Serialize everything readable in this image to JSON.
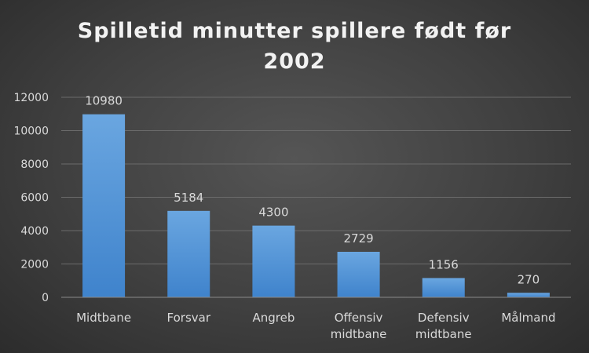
{
  "chart_data": {
    "type": "bar",
    "title_lines": [
      "Spilletid minutter spillere født før",
      "2002"
    ],
    "categories": [
      [
        "Midtbane"
      ],
      [
        "Forsvar"
      ],
      [
        "Angreb"
      ],
      [
        "Offensiv",
        "midtbane"
      ],
      [
        "Defensiv",
        "midtbane"
      ],
      [
        "Målmand"
      ]
    ],
    "values": [
      10980,
      5184,
      4300,
      2729,
      1156,
      270
    ],
    "data_labels": [
      "10980",
      "5184",
      "4300",
      "2729",
      "1156",
      "270"
    ],
    "ylim": [
      0,
      12000
    ],
    "yticks": [
      "0",
      "2000",
      "4000",
      "6000",
      "8000",
      "10000",
      "12000"
    ],
    "grid": true,
    "legend": "none",
    "bar_color_top": "#6aa6e0",
    "bar_color_bottom": "#3f83cc"
  }
}
